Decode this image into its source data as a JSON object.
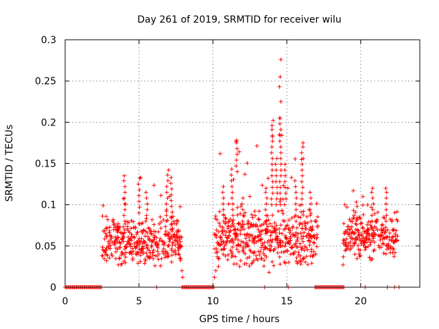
{
  "chart_data": {
    "type": "scatter",
    "title": "Day 261 of 2019, SRMTID for receiver wilu",
    "xlabel": "GPS time / hours",
    "ylabel": "SRMTID / TECUs",
    "xlim": [
      0,
      24
    ],
    "ylim": [
      0,
      0.3
    ],
    "grid": true,
    "x_ticks": [
      0,
      5,
      10,
      15,
      20
    ],
    "x_tick_labels": [
      "0",
      "5",
      "10",
      "15",
      "20"
    ],
    "y_ticks": [
      0,
      0.05,
      0.1,
      0.15,
      0.2,
      0.25,
      0.3
    ],
    "y_tick_labels": [
      "0",
      "0.05",
      "0.1",
      "0.15",
      "0.2",
      "0.25",
      "0.3"
    ],
    "marker": "+",
    "series": [
      {
        "name": "SRMTID",
        "color": "#ff0000",
        "segments": [
          {
            "x_start": 2.5,
            "x_end": 7.9,
            "y_base": 0.055,
            "y_spread": 0.02,
            "y_high": 0.14
          },
          {
            "x_start": 10.1,
            "x_end": 17.1,
            "y_base": 0.06,
            "y_spread": 0.025,
            "y_high": 0.276
          },
          {
            "x_start": 18.8,
            "x_end": 22.5,
            "y_base": 0.06,
            "y_spread": 0.02,
            "y_high": 0.12
          }
        ],
        "zero_ranges": [
          [
            0,
            2.5
          ],
          [
            7.9,
            10.1
          ],
          [
            16.9,
            18.9
          ]
        ],
        "zero_points": [
          6.2,
          13.5,
          15.1,
          20.3,
          21.8,
          22.3,
          22.6
        ],
        "peaks": [
          {
            "x": 4.0,
            "y": 0.135
          },
          {
            "x": 5.1,
            "y": 0.133
          },
          {
            "x": 7.0,
            "y": 0.142
          },
          {
            "x": 11.6,
            "y": 0.178
          },
          {
            "x": 13.6,
            "y": 0.12
          },
          {
            "x": 14.0,
            "y": 0.196
          },
          {
            "x": 14.6,
            "y": 0.276
          },
          {
            "x": 14.55,
            "y": 0.255
          },
          {
            "x": 14.5,
            "y": 0.243
          },
          {
            "x": 14.6,
            "y": 0.225
          },
          {
            "x": 14.55,
            "y": 0.205
          },
          {
            "x": 14.5,
            "y": 0.185
          },
          {
            "x": 16.1,
            "y": 0.175
          },
          {
            "x": 16.0,
            "y": 0.155
          },
          {
            "x": 19.5,
            "y": 0.117
          },
          {
            "x": 20.8,
            "y": 0.12
          },
          {
            "x": 21.7,
            "y": 0.12
          },
          {
            "x": 10.7,
            "y": 0.122
          }
        ],
        "dips": [
          {
            "x": 7.95,
            "y": 0.012
          },
          {
            "x": 7.9,
            "y": 0.02
          },
          {
            "x": 10.1,
            "y": 0.012
          },
          {
            "x": 10.2,
            "y": 0.02
          },
          {
            "x": 13.8,
            "y": 0.018
          }
        ]
      }
    ]
  }
}
